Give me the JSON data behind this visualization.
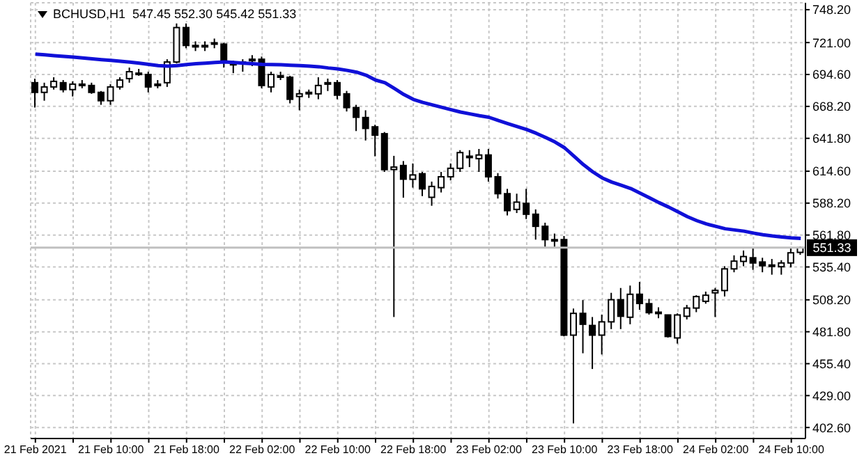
{
  "chart_data": {
    "type": "candlestick",
    "title": "BCHUSD,H1  547.45 552.30 545.42 551.33",
    "categories": [
      "21 Feb 2021",
      null,
      null,
      null,
      null,
      null,
      null,
      null,
      "21 Feb 10:00",
      null,
      null,
      null,
      null,
      null,
      null,
      null,
      "21 Feb 18:00",
      null,
      null,
      null,
      null,
      null,
      null,
      null,
      "22 Feb 02:00",
      null,
      null,
      null,
      null,
      null,
      null,
      null,
      "22 Feb 10:00",
      null,
      null,
      null,
      null,
      null,
      null,
      null,
      "22 Feb 18:00",
      null,
      null,
      null,
      null,
      null,
      null,
      null,
      "23 Feb 02:00",
      null,
      null,
      null,
      null,
      null,
      null,
      null,
      "23 Feb 10:00",
      null,
      null,
      null,
      null,
      null,
      null,
      null,
      "23 Feb 18:00",
      null,
      null,
      null,
      null,
      null,
      null,
      null,
      "24 Feb 02:00",
      null,
      null,
      null,
      null,
      null,
      null,
      null,
      "24 Feb 10:00",
      null
    ],
    "series": [
      {
        "color": "#000000",
        "ohlc": [
          [
            687.8,
            691.2,
            667.2,
            679.8
          ],
          [
            679.8,
            687.8,
            672.9,
            684.3
          ],
          [
            684.3,
            692.3,
            682.1,
            688.9
          ],
          [
            687.8,
            690.0,
            679.8,
            682.1
          ],
          [
            682.1,
            688.9,
            676.4,
            686.6
          ],
          [
            686.6,
            690.0,
            683.2,
            685.5
          ],
          [
            685.5,
            687.8,
            678.6,
            679.8
          ],
          [
            679.8,
            680.9,
            669.5,
            672.9
          ],
          [
            672.9,
            686.6,
            669.5,
            684.3
          ],
          [
            684.3,
            692.3,
            682.1,
            690.0
          ],
          [
            691.2,
            700.3,
            687.8,
            696.9
          ],
          [
            695.7,
            699.2,
            693.5,
            694.6
          ],
          [
            694.6,
            696.9,
            679.8,
            684.3
          ],
          [
            685.5,
            690.0,
            683.2,
            686.6
          ],
          [
            687.8,
            707.2,
            684.3,
            704.9
          ],
          [
            704.9,
            736.8,
            703.7,
            733.4
          ],
          [
            733.4,
            736.8,
            716.3,
            718.6
          ],
          [
            718.6,
            722.0,
            714.0,
            717.4
          ],
          [
            717.4,
            722.0,
            714.0,
            718.6
          ],
          [
            719.7,
            724.3,
            716.3,
            720.8
          ],
          [
            719.7,
            720.8,
            700.3,
            704.9
          ],
          [
            703.7,
            706.0,
            695.7,
            702.6
          ],
          [
            703.7,
            707.2,
            696.9,
            704.9
          ],
          [
            706.0,
            710.6,
            701.5,
            707.2
          ],
          [
            707.2,
            709.4,
            683.2,
            685.5
          ],
          [
            684.3,
            696.9,
            679.8,
            694.6
          ],
          [
            693.5,
            696.9,
            690.0,
            692.3
          ],
          [
            692.3,
            693.5,
            670.7,
            674.1
          ],
          [
            676.4,
            682.1,
            665.0,
            678.6
          ],
          [
            678.6,
            682.1,
            675.2,
            679.8
          ],
          [
            678.6,
            692.3,
            674.1,
            685.5
          ],
          [
            686.6,
            691.2,
            680.9,
            687.8
          ],
          [
            687.8,
            690.0,
            674.1,
            677.5
          ],
          [
            678.6,
            681.0,
            664.0,
            667.2
          ],
          [
            667.2,
            669.5,
            647.8,
            659.2
          ],
          [
            659.0,
            665.0,
            640.0,
            650.0
          ],
          [
            651.3,
            653.0,
            626.9,
            644.4
          ],
          [
            645.6,
            647.0,
            614.0,
            615.9
          ],
          [
            616.0,
            627.3,
            494.0,
            618.0
          ],
          [
            619.3,
            623.0,
            592.7,
            608.0
          ],
          [
            607.9,
            621.0,
            601.0,
            611.5
          ],
          [
            612.5,
            614.0,
            594.0,
            600.0
          ],
          [
            593.0,
            606.0,
            586.0,
            602.0
          ],
          [
            601.0,
            614.0,
            597.0,
            610.0
          ],
          [
            610.0,
            621.0,
            607.0,
            617.0
          ],
          [
            617.0,
            632.0,
            614.0,
            630.0
          ],
          [
            627.0,
            632.0,
            618.0,
            626.0
          ],
          [
            625.0,
            633.0,
            614.0,
            628.0
          ],
          [
            628.0,
            633.0,
            606.0,
            610.0
          ],
          [
            610.0,
            613.0,
            592.0,
            596.0
          ],
          [
            596.0,
            600.0,
            578.0,
            582.0
          ],
          [
            583.0,
            596.0,
            580.0,
            589.0
          ],
          [
            588.0,
            600.0,
            575.0,
            579.0
          ],
          [
            579.0,
            583.0,
            558.0,
            569.0
          ],
          [
            569.0,
            572.0,
            552.0,
            558.0
          ],
          [
            558.0,
            563.0,
            552.0,
            557.0
          ],
          [
            558.0,
            561.0,
            478.0,
            479.0
          ],
          [
            479.0,
            501.0,
            406.0,
            497.0
          ],
          [
            497.0,
            508.0,
            464.0,
            488.0
          ],
          [
            487.0,
            494.0,
            451.0,
            479.0
          ],
          [
            479.0,
            496.0,
            463.0,
            490.0
          ],
          [
            490.0,
            514.0,
            484.0,
            508.3
          ],
          [
            508.3,
            518.0,
            484.0,
            494.6
          ],
          [
            493.8,
            520.0,
            488.0,
            512.8
          ],
          [
            512.8,
            523.0,
            500.0,
            505.2
          ],
          [
            505.0,
            509.0,
            496.0,
            497.6
          ],
          [
            498.0,
            502.0,
            493.0,
            496.9
          ],
          [
            495.7,
            496.0,
            477.0,
            477.9
          ],
          [
            476.7,
            497.0,
            472.0,
            495.7
          ],
          [
            494.6,
            504.0,
            492.0,
            501.4
          ],
          [
            501.4,
            512.0,
            498.0,
            510.9
          ],
          [
            507.0,
            515.0,
            505.0,
            512.0
          ],
          [
            514.0,
            518.0,
            494.0,
            516.0
          ],
          [
            515.9,
            536.0,
            511.0,
            533.8
          ],
          [
            533.8,
            545.0,
            531.0,
            540.2
          ],
          [
            540.0,
            549.0,
            536.0,
            544.0
          ],
          [
            543.0,
            551.0,
            533.0,
            538.7
          ],
          [
            539.5,
            543.0,
            531.0,
            536.4
          ],
          [
            537.0,
            542.0,
            529.0,
            536.0
          ],
          [
            535.6,
            541.0,
            529.0,
            538.7
          ],
          [
            538.7,
            551.0,
            535.0,
            547.1
          ],
          [
            547.45,
            552.3,
            545.42,
            551.33
          ]
        ]
      },
      {
        "type": "line",
        "color": "#1010d8",
        "values": [
          711.4,
          710.8,
          710.2,
          709.6,
          709,
          708.3,
          707.6,
          706.9,
          706.2,
          705.5,
          704.8,
          703.9,
          703,
          702,
          701.5,
          702,
          702.8,
          703.5,
          704,
          704.5,
          704.9,
          704.5,
          704,
          703.5,
          703,
          702.8,
          702.6,
          702.3,
          702,
          701.5,
          701,
          700,
          699.2,
          698,
          696.5,
          694,
          690,
          687.8,
          683,
          678,
          674,
          671.5,
          669.5,
          667.5,
          665.5,
          663.5,
          662,
          660.5,
          659.2,
          656.5,
          654,
          651.5,
          649,
          646,
          642.5,
          638.7,
          634,
          627,
          620,
          614,
          609,
          605.6,
          603,
          600.3,
          596.5,
          592.5,
          588.6,
          585,
          581,
          577,
          573.7,
          571,
          569,
          567,
          566,
          565,
          563.4,
          562,
          561,
          560.2,
          559.5,
          559
        ]
      }
    ],
    "ylim": [
      393.5,
      753.9
    ],
    "yticks": [
      {
        "value": 748.2,
        "label": "748.20"
      },
      {
        "value": 721.0,
        "label": "721.00"
      },
      {
        "value": 694.6,
        "label": "694.60"
      },
      {
        "value": 668.2,
        "label": "668.20"
      },
      {
        "value": 641.8,
        "label": "641.80"
      },
      {
        "value": 614.6,
        "label": "614.60"
      },
      {
        "value": 588.2,
        "label": "588.20"
      },
      {
        "value": 561.8,
        "label": "561.80"
      },
      {
        "value": 535.4,
        "label": "535.40"
      },
      {
        "value": 508.2,
        "label": "508.20"
      },
      {
        "value": 481.8,
        "label": "481.80"
      },
      {
        "value": 455.4,
        "label": "455.40"
      },
      {
        "value": 429.0,
        "label": "429.00"
      },
      {
        "value": 402.6,
        "label": "402.60"
      }
    ],
    "grid": true,
    "ref_lines": [
      {
        "axis": "y",
        "value": 551.33,
        "label": "551.33",
        "color": "#c0c0c0"
      }
    ]
  }
}
